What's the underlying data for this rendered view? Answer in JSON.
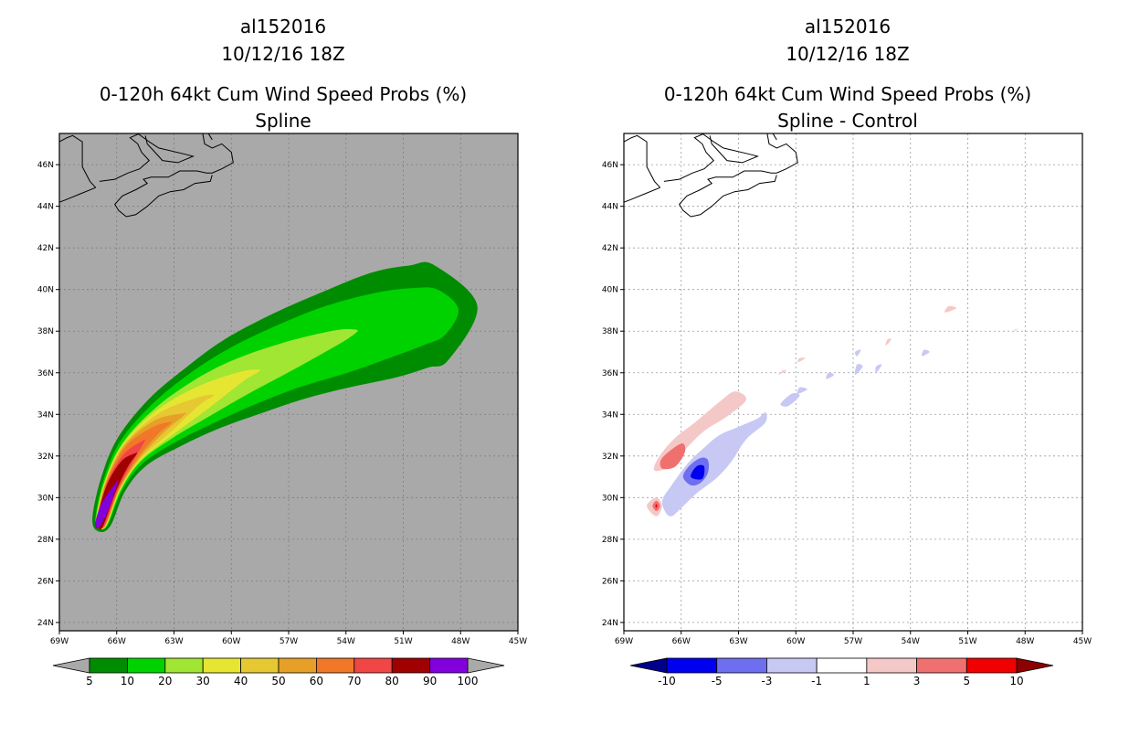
{
  "chart_data": [
    {
      "type": "heatmap",
      "storm_id": "al152016",
      "datetime": "10/12/16 18Z",
      "title": "0-120h 64kt Cum Wind Speed Probs (%)",
      "subtitle": "Spline",
      "xlabel": "",
      "ylabel": "",
      "xlim": [
        -69,
        -45
      ],
      "ylim": [
        23.6,
        47.5
      ],
      "x_ticks": [
        -69,
        -66,
        -63,
        -60,
        -57,
        -54,
        -51,
        -48,
        -45
      ],
      "x_tick_labels": [
        "69W",
        "66W",
        "63W",
        "60W",
        "57W",
        "54W",
        "51W",
        "48W",
        "45W"
      ],
      "y_ticks": [
        24,
        26,
        28,
        30,
        32,
        34,
        36,
        38,
        40,
        42,
        44,
        46
      ],
      "y_tick_labels": [
        "24N",
        "26N",
        "28N",
        "30N",
        "32N",
        "34N",
        "36N",
        "38N",
        "40N",
        "42N",
        "44N",
        "46N"
      ],
      "background": "#a9a9a9",
      "grid": true,
      "colorbar": {
        "labels": [
          "5",
          "10",
          "20",
          "30",
          "40",
          "50",
          "60",
          "70",
          "80",
          "90",
          "100"
        ],
        "colors": [
          "#008c00",
          "#00d200",
          "#a0e632",
          "#e6e632",
          "#e6c832",
          "#e6a028",
          "#f07828",
          "#f04646",
          "#a00000",
          "#8200dc"
        ],
        "under_color": "#a9a9a9",
        "over_color": "#a9a9a9"
      },
      "track": {
        "lon": [
          -66.8,
          -66.2,
          -65.2,
          -63.5,
          -61.5,
          -59.5,
          -57.0,
          -54.5,
          -52.0,
          -50.2,
          -49.0
        ],
        "lat": [
          28.8,
          30.6,
          32.2,
          33.6,
          34.8,
          35.8,
          36.8,
          37.6,
          38.3,
          38.7,
          38.9
        ]
      },
      "contours": [
        {
          "level": 5,
          "color": "#008c00",
          "half_widths": [
            0.5,
            0.7,
            1.0,
            1.4,
            1.7,
            2.0,
            2.2,
            2.4,
            2.6,
            2.5,
            2.3
          ],
          "cap": 1.9
        },
        {
          "level": 10,
          "color": "#00d200",
          "half_widths": [
            0.35,
            0.55,
            0.8,
            1.1,
            1.35,
            1.5,
            1.6,
            1.7,
            1.6,
            1.4,
            1.1
          ],
          "cap": 0.9
        },
        {
          "level": 20,
          "color": "#a0e632",
          "lon": [
            -66.8,
            -66.2,
            -65.2,
            -63.5,
            -61.5,
            -59.5,
            -57.0,
            -54.5,
            -53.5
          ],
          "lat": [
            28.8,
            30.6,
            32.2,
            33.6,
            34.8,
            35.8,
            36.8,
            37.7,
            38.0
          ],
          "half_widths": [
            0.32,
            0.48,
            0.65,
            0.85,
            0.95,
            0.9,
            0.7,
            0.35,
            0.08
          ]
        },
        {
          "level": 30,
          "color": "#e6e632",
          "lon": [
            -66.8,
            -66.2,
            -65.2,
            -63.5,
            -61.5,
            -59.5,
            -58.6
          ],
          "lat": [
            28.8,
            30.6,
            32.2,
            33.6,
            34.8,
            35.8,
            36.1
          ],
          "half_widths": [
            0.3,
            0.45,
            0.6,
            0.72,
            0.6,
            0.25,
            0.06
          ]
        },
        {
          "level": 40,
          "color": "#e6c832",
          "lon": [
            -66.8,
            -66.2,
            -65.2,
            -63.5,
            -61.8,
            -61.0
          ],
          "lat": [
            28.8,
            30.6,
            32.2,
            33.6,
            34.6,
            34.9
          ],
          "half_widths": [
            0.28,
            0.42,
            0.55,
            0.55,
            0.2,
            0.05
          ]
        },
        {
          "level": 50,
          "color": "#e6a028",
          "lon": [
            -66.8,
            -66.2,
            -65.2,
            -63.8,
            -62.5
          ],
          "lat": [
            28.8,
            30.6,
            32.2,
            33.4,
            34.0
          ],
          "half_widths": [
            0.26,
            0.4,
            0.5,
            0.38,
            0.05
          ]
        },
        {
          "level": 60,
          "color": "#f07828",
          "lon": [
            -66.8,
            -66.2,
            -65.2,
            -64.0,
            -63.2
          ],
          "lat": [
            28.8,
            30.6,
            32.2,
            33.2,
            33.6
          ],
          "half_widths": [
            0.24,
            0.37,
            0.42,
            0.22,
            0.04
          ]
        },
        {
          "level": 70,
          "color": "#f04646",
          "lon": [
            -66.8,
            -66.2,
            -65.4,
            -64.6
          ],
          "lat": [
            28.8,
            30.6,
            31.9,
            32.7
          ],
          "half_widths": [
            0.22,
            0.33,
            0.3,
            0.05
          ]
        },
        {
          "level": 80,
          "color": "#a00000",
          "lon": [
            -66.9,
            -66.3,
            -65.6,
            -65.0
          ],
          "lat": [
            28.7,
            30.4,
            31.6,
            32.1
          ],
          "half_widths": [
            0.2,
            0.28,
            0.22,
            0.04
          ]
        },
        {
          "level": 90,
          "color": "#8200dc",
          "lon": [
            -67.0,
            -66.6,
            -66.0
          ],
          "lat": [
            28.7,
            29.6,
            30.7
          ],
          "half_widths": [
            0.15,
            0.22,
            0.04
          ]
        }
      ]
    },
    {
      "type": "heatmap",
      "storm_id": "al152016",
      "datetime": "10/12/16 18Z",
      "title": "0-120h 64kt Cum Wind Speed Probs (%)",
      "subtitle": "Spline - Control",
      "xlabel": "",
      "ylabel": "",
      "xlim": [
        -69,
        -45
      ],
      "ylim": [
        23.6,
        47.5
      ],
      "x_ticks": [
        -69,
        -66,
        -63,
        -60,
        -57,
        -54,
        -51,
        -48,
        -45
      ],
      "x_tick_labels": [
        "69W",
        "66W",
        "63W",
        "60W",
        "57W",
        "54W",
        "51W",
        "48W",
        "45W"
      ],
      "y_ticks": [
        24,
        26,
        28,
        30,
        32,
        34,
        36,
        38,
        40,
        42,
        44,
        46
      ],
      "y_tick_labels": [
        "24N",
        "26N",
        "28N",
        "30N",
        "32N",
        "34N",
        "36N",
        "38N",
        "40N",
        "42N",
        "44N",
        "46N"
      ],
      "background": "#ffffff",
      "grid": true,
      "colorbar": {
        "labels": [
          "-10",
          "-5",
          "-3",
          "-1",
          "1",
          "3",
          "5",
          "10"
        ],
        "colors": [
          "#0000f0",
          "#6e6ef0",
          "#c8c8f5",
          "#ffffff",
          "#f5c8c8",
          "#f07070",
          "#f00000"
        ],
        "under_color": "#00008c",
        "over_color": "#8c0000"
      },
      "blobs": [
        {
          "level": -1,
          "color": "#c8c8f5",
          "points": [
            [
              -67.0,
              29.8
            ],
            [
              -66.5,
              30.6
            ],
            [
              -65.6,
              31.7
            ],
            [
              -64.8,
              32.4
            ],
            [
              -64.0,
              33.0
            ],
            [
              -63.0,
              33.4
            ],
            [
              -62.0,
              33.8
            ],
            [
              -61.6,
              34.1
            ],
            [
              -61.6,
              33.6
            ],
            [
              -62.6,
              32.8
            ],
            [
              -63.4,
              31.7
            ],
            [
              -64.2,
              30.9
            ],
            [
              -65.2,
              30.2
            ],
            [
              -66.0,
              29.5
            ],
            [
              -66.6,
              29.1
            ]
          ]
        },
        {
          "level": -3,
          "color": "#6e6ef0",
          "points": [
            [
              -65.9,
              31.0
            ],
            [
              -65.6,
              31.5
            ],
            [
              -65.0,
              31.9
            ],
            [
              -64.6,
              31.8
            ],
            [
              -64.6,
              31.2
            ],
            [
              -65.0,
              30.7
            ],
            [
              -65.5,
              30.6
            ]
          ]
        },
        {
          "level": -5,
          "color": "#0000f0",
          "points": [
            [
              -65.5,
              31.0
            ],
            [
              -65.2,
              31.5
            ],
            [
              -64.8,
              31.5
            ],
            [
              -64.9,
              30.9
            ]
          ]
        },
        {
          "level": -1,
          "color": "#c8c8f5",
          "points": [
            [
              -60.4,
              34.4
            ],
            [
              -59.8,
              34.9
            ],
            [
              -60.2,
              35.0
            ],
            [
              -60.8,
              34.5
            ]
          ]
        },
        {
          "level": -1,
          "color": "#c8c8f5",
          "points": [
            [
              -59.9,
              35.0
            ],
            [
              -59.4,
              35.2
            ],
            [
              -59.8,
              35.3
            ]
          ]
        },
        {
          "level": -1,
          "color": "#c8c8f5",
          "points": [
            [
              -58.4,
              35.7
            ],
            [
              -58.0,
              35.9
            ],
            [
              -58.3,
              36.0
            ]
          ]
        },
        {
          "level": -1,
          "color": "#c8c8f5",
          "points": [
            [
              -56.9,
              35.9
            ],
            [
              -56.5,
              36.3
            ],
            [
              -56.8,
              36.4
            ]
          ]
        },
        {
          "level": -1,
          "color": "#c8c8f5",
          "points": [
            [
              -55.8,
              36.0
            ],
            [
              -55.5,
              36.4
            ],
            [
              -55.8,
              36.3
            ]
          ]
        },
        {
          "level": -1,
          "color": "#c8c8f5",
          "points": [
            [
              -56.8,
              36.8
            ],
            [
              -56.6,
              37.1
            ],
            [
              -56.9,
              37.0
            ]
          ]
        },
        {
          "level": -1,
          "color": "#c8c8f5",
          "points": [
            [
              -53.4,
              36.8
            ],
            [
              -53.0,
              37.0
            ],
            [
              -53.3,
              37.1
            ]
          ]
        },
        {
          "level": 1,
          "color": "#f5c8c8",
          "points": [
            [
              -67.2,
              31.9
            ],
            [
              -66.4,
              32.8
            ],
            [
              -65.3,
              33.6
            ],
            [
              -64.0,
              34.6
            ],
            [
              -63.2,
              35.1
            ],
            [
              -62.6,
              34.7
            ],
            [
              -63.6,
              33.9
            ],
            [
              -64.8,
              33.2
            ],
            [
              -65.8,
              32.3
            ],
            [
              -66.6,
              31.5
            ],
            [
              -67.4,
              31.3
            ]
          ]
        },
        {
          "level": 3,
          "color": "#f07070",
          "points": [
            [
              -67.0,
              31.9
            ],
            [
              -66.0,
              32.6
            ],
            [
              -65.8,
              32.2
            ],
            [
              -66.3,
              31.5
            ],
            [
              -67.0,
              31.4
            ]
          ]
        },
        {
          "level": 1,
          "color": "#f5c8c8",
          "points": [
            [
              -67.8,
              29.6
            ],
            [
              -67.3,
              30.0
            ],
            [
              -67.0,
              29.6
            ],
            [
              -67.3,
              29.1
            ]
          ]
        },
        {
          "level": 3,
          "color": "#f07070",
          "points": [
            [
              -67.5,
              29.6
            ],
            [
              -67.3,
              29.85
            ],
            [
              -67.1,
              29.6
            ],
            [
              -67.3,
              29.35
            ]
          ]
        },
        {
          "level": 5,
          "color": "#f00000",
          "points": [
            [
              -67.35,
              29.6
            ],
            [
              -67.3,
              29.7
            ],
            [
              -67.25,
              29.6
            ],
            [
              -67.3,
              29.5
            ]
          ]
        },
        {
          "level": 1,
          "color": "#f5c8c8",
          "points": [
            [
              -60.9,
              35.9
            ],
            [
              -60.5,
              36.1
            ],
            [
              -60.7,
              36.1
            ]
          ]
        },
        {
          "level": 1,
          "color": "#f5c8c8",
          "points": [
            [
              -59.9,
              36.5
            ],
            [
              -59.5,
              36.7
            ],
            [
              -59.8,
              36.7
            ]
          ]
        },
        {
          "level": 1,
          "color": "#f5c8c8",
          "points": [
            [
              -55.3,
              37.3
            ],
            [
              -55.0,
              37.6
            ],
            [
              -55.2,
              37.6
            ]
          ]
        },
        {
          "level": 1,
          "color": "#f5c8c8",
          "points": [
            [
              -52.2,
              38.9
            ],
            [
              -51.6,
              39.1
            ],
            [
              -52.0,
              39.2
            ]
          ]
        },
        {
          "level": 1,
          "color": "#f5c8c8",
          "points": [
            [
              -48.6,
              38.0
            ],
            [
              -48.4,
              38.1
            ],
            [
              -48.5,
              38.1
            ]
          ]
        }
      ]
    }
  ],
  "coastline": [
    [
      [
        -69,
        47.1
      ],
      [
        -68.6,
        47.3
      ],
      [
        -68.3,
        47.4
      ],
      [
        -67.8,
        47.1
      ],
      [
        -67.8,
        46.5
      ],
      [
        -67.8,
        45.9
      ],
      [
        -67.4,
        45.2
      ],
      [
        -67.1,
        44.9
      ]
    ],
    [
      [
        -67.1,
        44.9
      ],
      [
        -67.9,
        44.6
      ],
      [
        -68.7,
        44.3
      ],
      [
        -69,
        44.2
      ]
    ],
    [
      [
        -66.9,
        45.2
      ],
      [
        -66.1,
        45.3
      ],
      [
        -65.4,
        45.6
      ],
      [
        -64.8,
        45.8
      ],
      [
        -64.3,
        46.2
      ],
      [
        -64.7,
        46.6
      ],
      [
        -64.9,
        47.0
      ],
      [
        -65.3,
        47.3
      ],
      [
        -64.8,
        47.5
      ]
    ],
    [
      [
        -64.9,
        47.5
      ],
      [
        -64.3,
        47.1
      ],
      [
        -63.8,
        46.8
      ],
      [
        -62.4,
        46.5
      ],
      [
        -62.0,
        46.4
      ],
      [
        -62.8,
        46.1
      ],
      [
        -63.6,
        46.2
      ],
      [
        -64.0,
        46.6
      ],
      [
        -64.4,
        47.0
      ],
      [
        -64.5,
        47.4
      ]
    ],
    [
      [
        -61.5,
        47.5
      ],
      [
        -61.4,
        47.0
      ],
      [
        -61.0,
        46.8
      ],
      [
        -60.5,
        47.0
      ],
      [
        -60.0,
        46.6
      ],
      [
        -59.9,
        46.1
      ],
      [
        -60.5,
        45.8
      ],
      [
        -61.0,
        45.6
      ],
      [
        -61.3,
        45.6
      ],
      [
        -61.8,
        45.7
      ],
      [
        -62.7,
        45.7
      ],
      [
        -63.3,
        45.4
      ],
      [
        -64.2,
        45.4
      ],
      [
        -64.6,
        45.3
      ],
      [
        -64.4,
        45.1
      ],
      [
        -65.0,
        44.8
      ],
      [
        -65.7,
        44.5
      ],
      [
        -66.1,
        44.1
      ],
      [
        -65.9,
        43.8
      ],
      [
        -65.5,
        43.5
      ],
      [
        -65.0,
        43.6
      ],
      [
        -64.4,
        44.0
      ],
      [
        -63.8,
        44.5
      ],
      [
        -63.2,
        44.7
      ],
      [
        -62.5,
        44.8
      ],
      [
        -61.9,
        45.1
      ],
      [
        -61.1,
        45.2
      ],
      [
        -61.0,
        45.5
      ]
    ],
    [
      [
        -61.0,
        47.2
      ],
      [
        -61.2,
        47.5
      ]
    ]
  ]
}
